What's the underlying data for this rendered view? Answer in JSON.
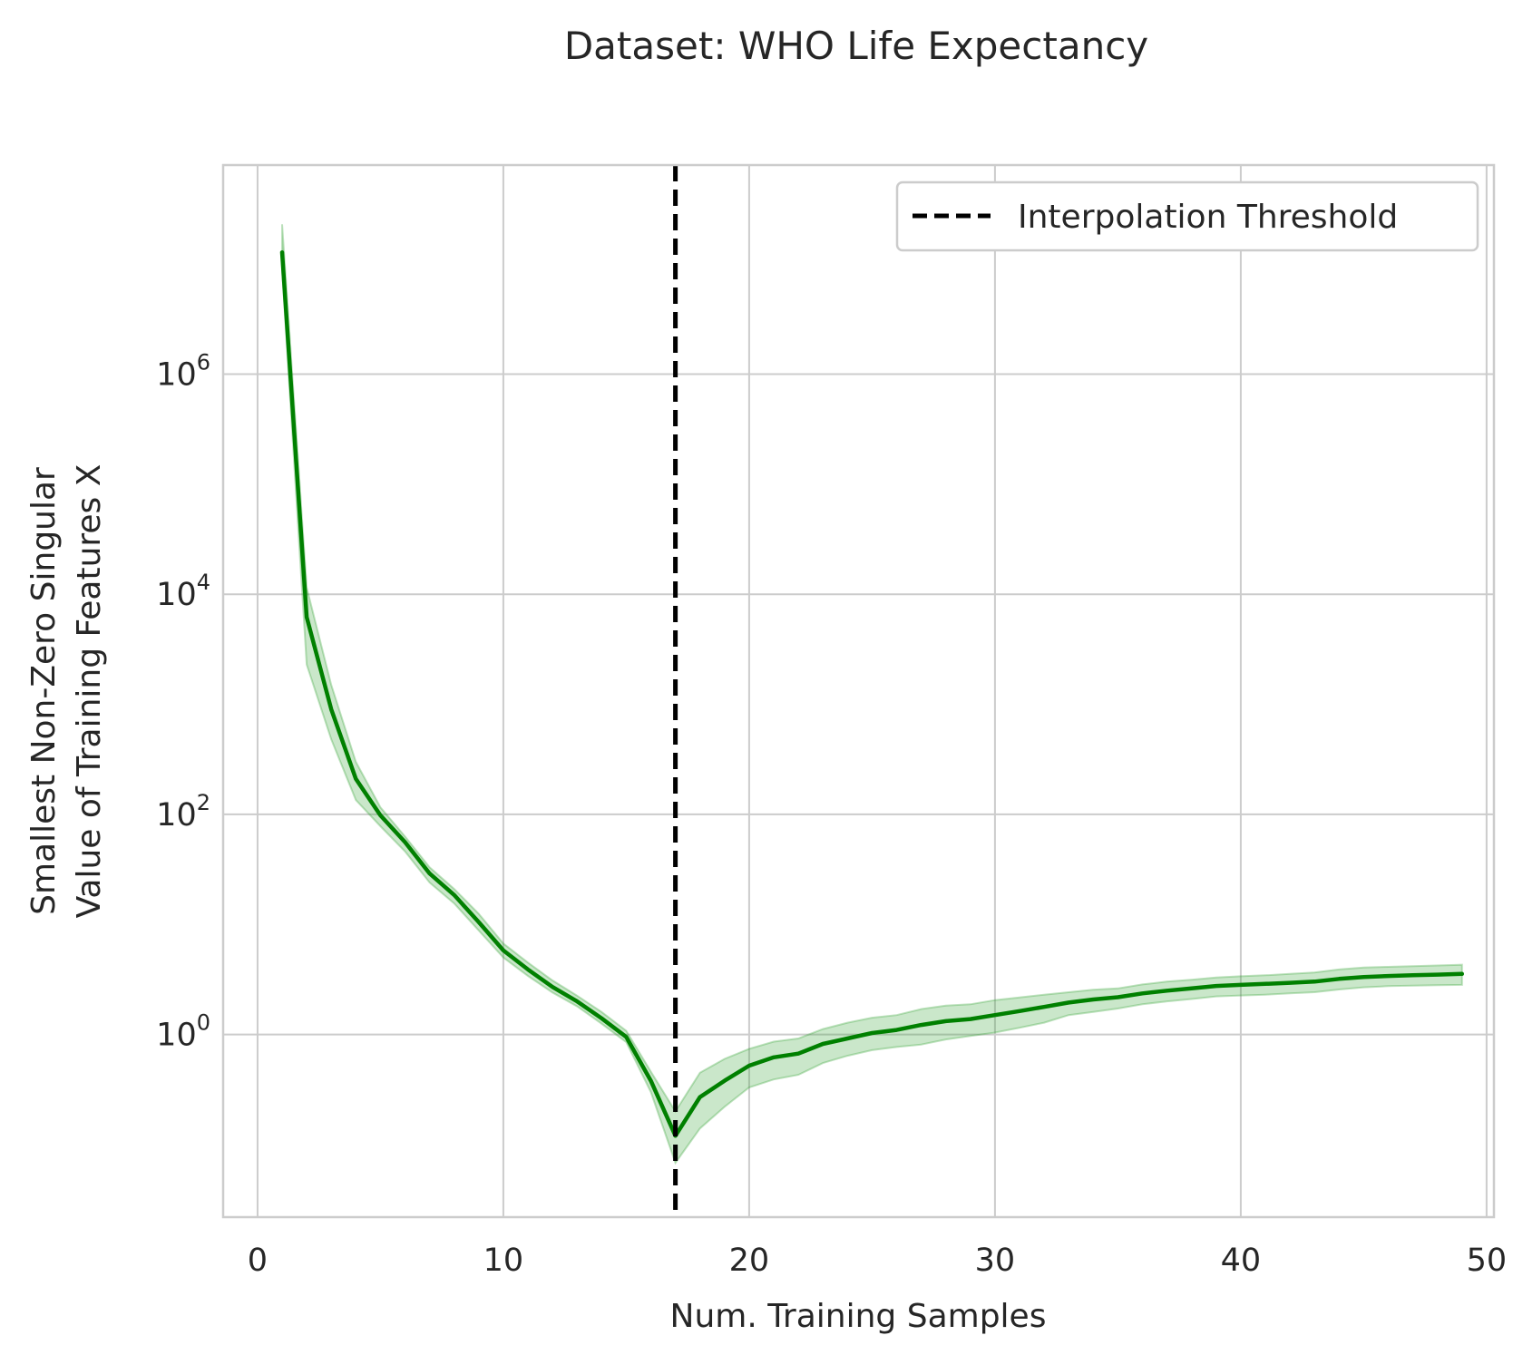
{
  "chart_data": {
    "type": "line",
    "title": "Dataset: WHO Life Expectancy",
    "xlabel": "Num. Training Samples",
    "ylabel_lines": [
      "Smallest Non-Zero Singular",
      "Value of Training Features X"
    ],
    "xlim": [
      -1.4,
      50.3
    ],
    "ylim_log10": [
      -1.66,
      7.9
    ],
    "y_scale": "log",
    "grid": true,
    "legend_position": "top-right",
    "xticks": [
      0,
      10,
      20,
      30,
      40,
      50
    ],
    "xtick_labels": [
      "0",
      "10",
      "20",
      "30",
      "40",
      "50"
    ],
    "yticks_exp": [
      0,
      2,
      4,
      6
    ],
    "ytick_base": "10",
    "ytick_exps": [
      "0",
      "2",
      "4",
      "6"
    ],
    "threshold": {
      "x": 17,
      "label": "Interpolation Threshold",
      "color": "#000000",
      "style": "dashed"
    },
    "series": [
      {
        "color": "#008000",
        "band_color": "#2ca02c",
        "x": [
          1,
          2,
          3,
          4,
          5,
          6,
          7,
          8,
          9,
          10,
          11,
          12,
          13,
          14,
          15,
          16,
          17,
          18,
          19,
          20,
          21,
          22,
          23,
          24,
          25,
          26,
          27,
          28,
          29,
          30,
          31,
          32,
          33,
          34,
          35,
          36,
          37,
          38,
          39,
          40,
          41,
          42,
          43,
          44,
          45,
          46,
          47,
          48,
          49
        ],
        "y": [
          12800000,
          6200,
          900,
          210,
          98,
          56,
          29,
          18.5,
          10.5,
          5.8,
          3.9,
          2.7,
          2.0,
          1.4,
          0.95,
          0.38,
          0.12,
          0.27,
          0.38,
          0.52,
          0.62,
          0.67,
          0.82,
          0.92,
          1.03,
          1.1,
          1.22,
          1.32,
          1.38,
          1.5,
          1.63,
          1.78,
          1.95,
          2.08,
          2.18,
          2.36,
          2.5,
          2.62,
          2.76,
          2.82,
          2.88,
          2.95,
          3.02,
          3.2,
          3.33,
          3.4,
          3.45,
          3.5,
          3.55
        ],
        "y_lower": [
          9000000,
          2300,
          480,
          135,
          78,
          46,
          24,
          15.5,
          8.8,
          5.0,
          3.4,
          2.4,
          1.8,
          1.25,
          0.85,
          0.3,
          0.068,
          0.14,
          0.22,
          0.33,
          0.39,
          0.43,
          0.55,
          0.64,
          0.72,
          0.77,
          0.81,
          0.9,
          0.97,
          1.04,
          1.15,
          1.28,
          1.5,
          1.6,
          1.72,
          1.88,
          2.0,
          2.1,
          2.22,
          2.26,
          2.3,
          2.36,
          2.42,
          2.56,
          2.68,
          2.75,
          2.78,
          2.8,
          2.82
        ],
        "y_upper": [
          23000000,
          11500,
          1500,
          300,
          116,
          63,
          33,
          21,
          12.5,
          6.7,
          4.5,
          3.1,
          2.25,
          1.6,
          1.08,
          0.46,
          0.2,
          0.45,
          0.6,
          0.74,
          0.86,
          0.92,
          1.12,
          1.28,
          1.42,
          1.5,
          1.7,
          1.83,
          1.88,
          2.05,
          2.17,
          2.3,
          2.42,
          2.55,
          2.62,
          2.85,
          3.02,
          3.14,
          3.3,
          3.38,
          3.45,
          3.55,
          3.65,
          3.9,
          4.06,
          4.12,
          4.18,
          4.24,
          4.3
        ]
      }
    ]
  }
}
